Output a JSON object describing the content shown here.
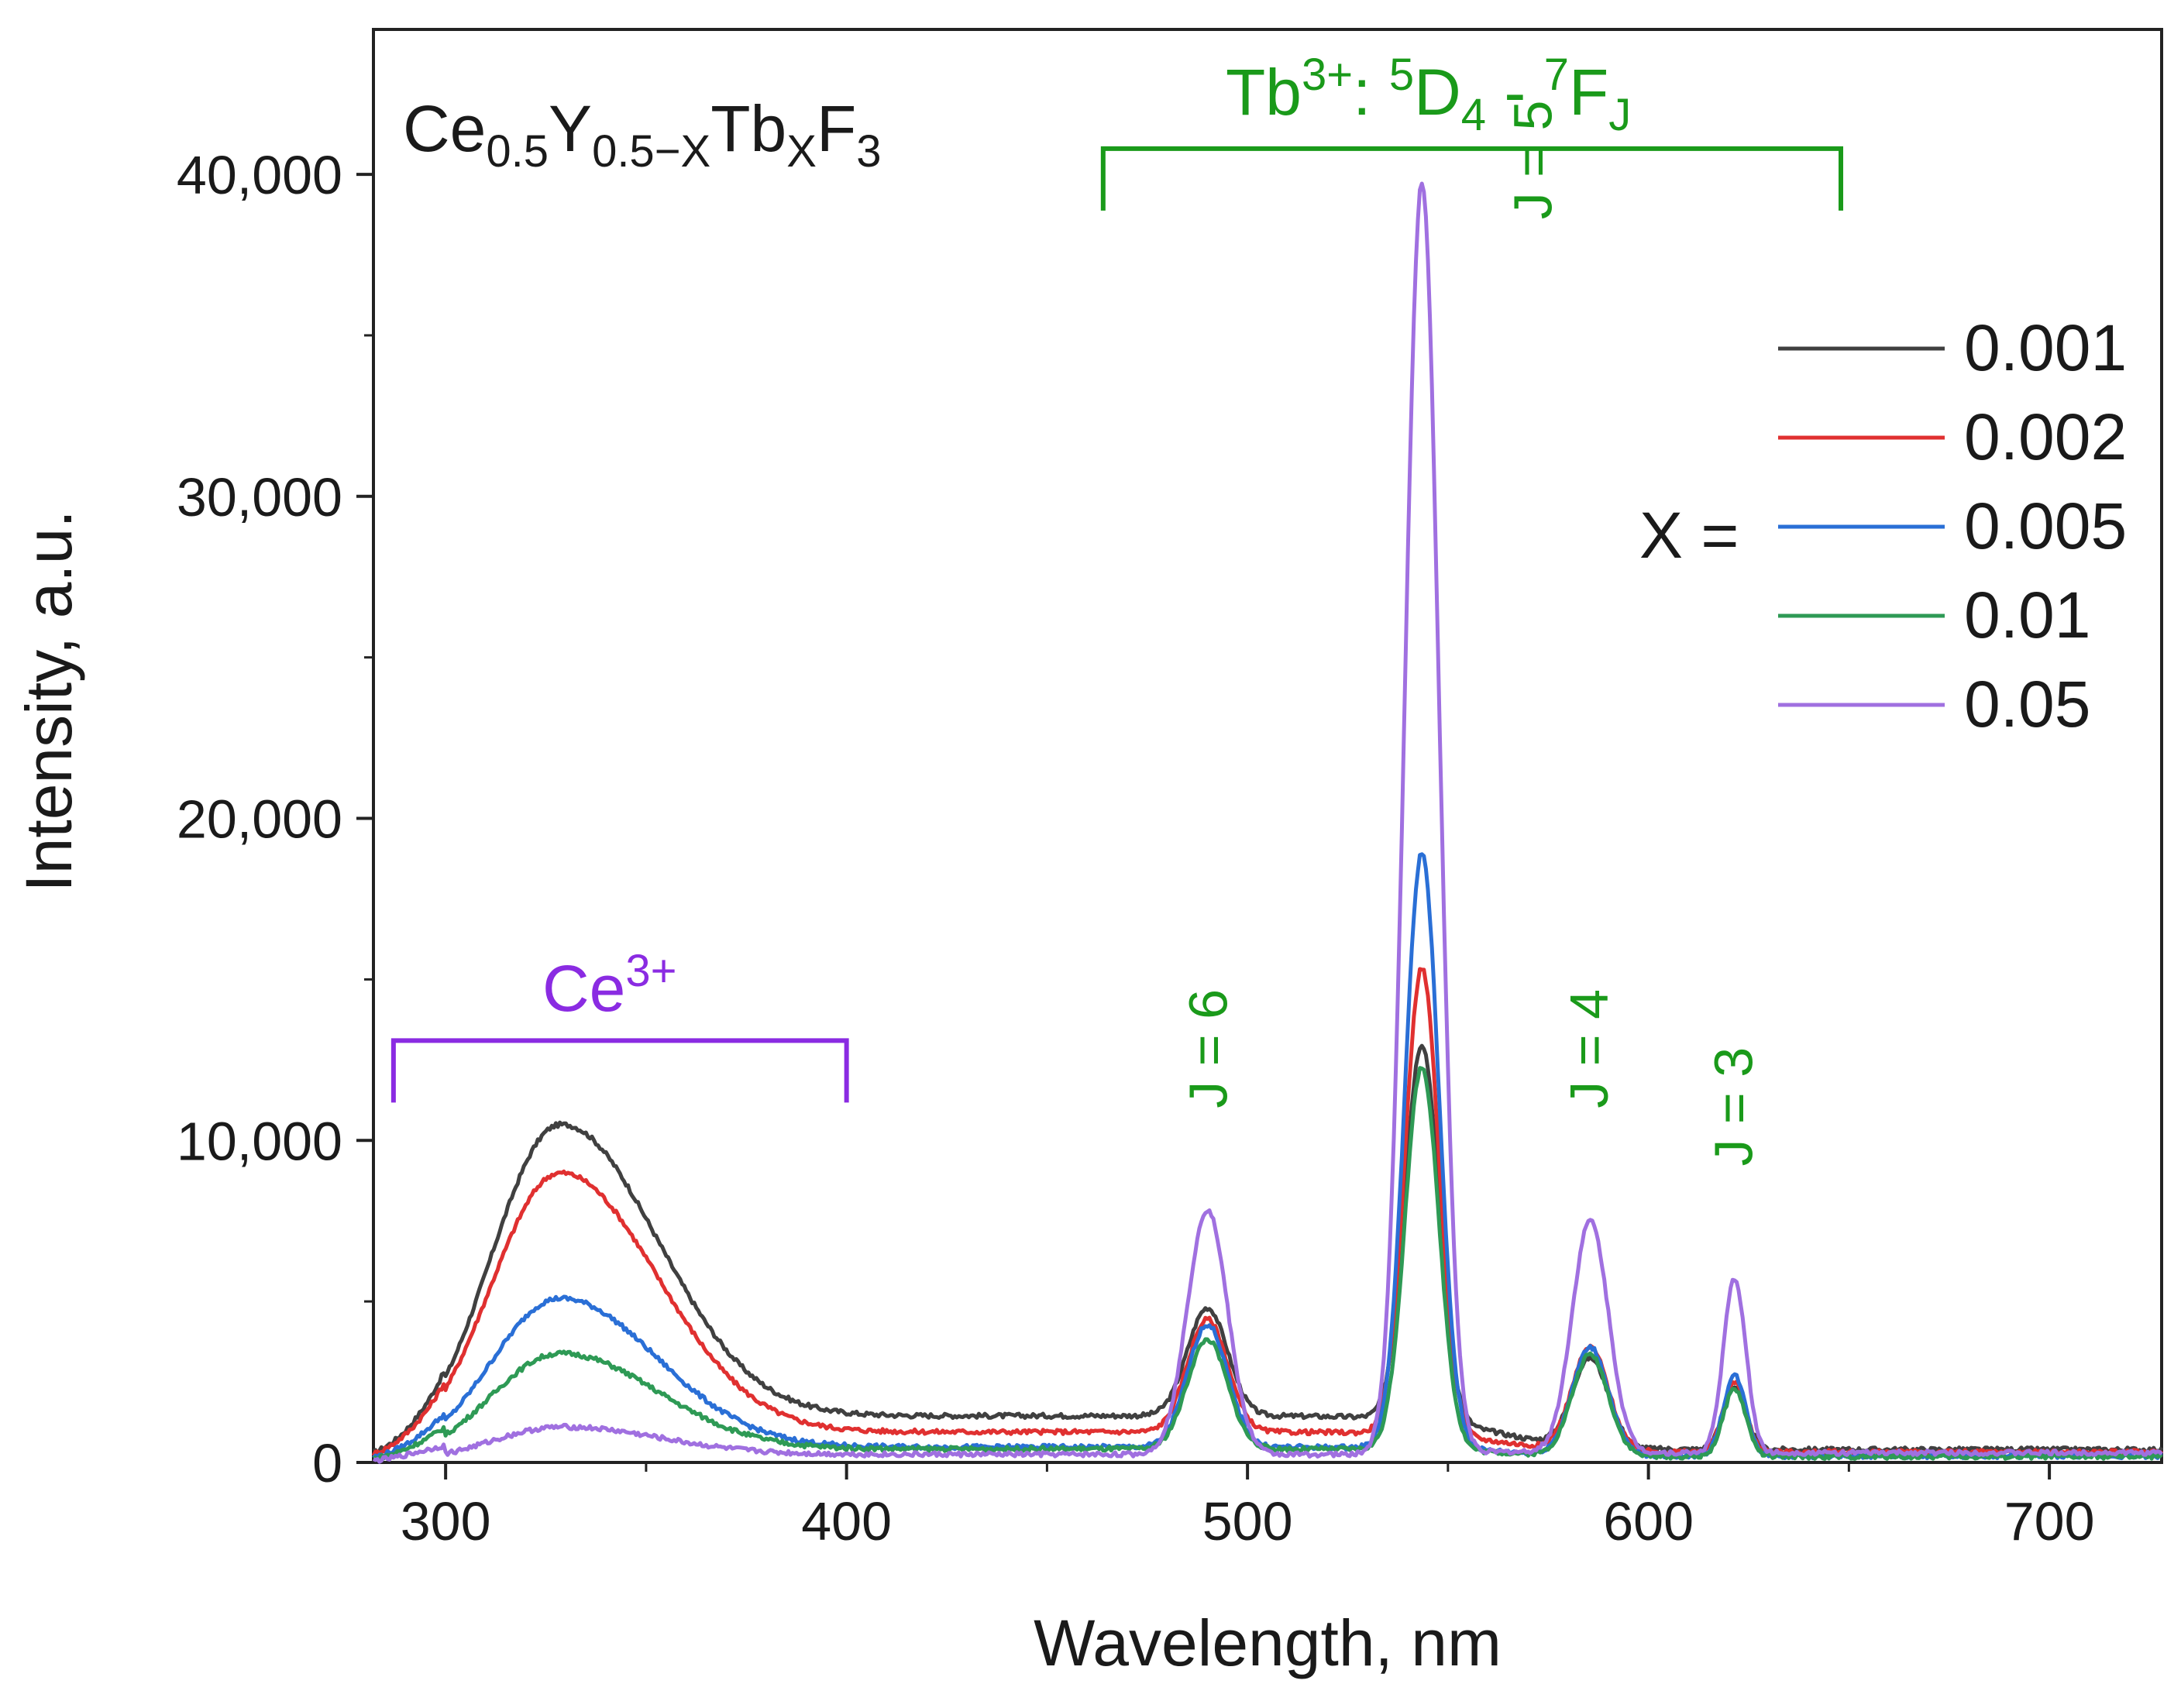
{
  "chart_data": {
    "type": "line",
    "xlabel": "Wavelength, nm",
    "ylabel": "Intensity, a.u.",
    "xlim": [
      282,
      728
    ],
    "ylim": [
      0,
      44500
    ],
    "x_ticks": [
      300,
      400,
      500,
      600,
      700
    ],
    "x_tick_labels": [
      "300",
      "400",
      "500",
      "600",
      "700"
    ],
    "y_ticks": [
      0,
      10000,
      20000,
      30000,
      40000
    ],
    "y_tick_labels": [
      "0",
      "10,000",
      "20,000",
      "30,000",
      "40,000"
    ],
    "compound": {
      "base": "Ce",
      "sub1": "0.5",
      "mid": "Y",
      "sub2": "0.5−X",
      "mid2": "Tb",
      "sub3": "X",
      "end": "F",
      "sub4": "3"
    },
    "tb_label": {
      "main": "Tb",
      "sup1": "3+",
      "colon": ": ",
      "sup2": "5",
      "d": "D",
      "sub1": "4",
      "dash": " - ",
      "sup3": "7",
      "f": "F",
      "sub2": "J"
    },
    "ce_label": {
      "main": "Ce",
      "sup": "3+"
    },
    "legend_prefix": "X =",
    "legend_position": "right",
    "annotations": [
      {
        "text": "J = 6",
        "x": 490,
        "y": 11000
      },
      {
        "text": "J = 5",
        "x": 571,
        "y": 38600
      },
      {
        "text": "J = 4",
        "x": 585,
        "y": 11000
      },
      {
        "text": "J = 3",
        "x": 621,
        "y": 9200
      }
    ],
    "brackets": [
      {
        "name": "ce3-bracket",
        "x_start": 287,
        "x_end": 400,
        "y": 13100,
        "color": "#8a2be2"
      },
      {
        "name": "tb3-bracket",
        "x_start": 464,
        "x_end": 648,
        "y": 40800,
        "color": "#1a9a1a"
      }
    ],
    "series": [
      {
        "name": "0.001",
        "color": "#404040",
        "ce_amp": 10200,
        "base": 1450,
        "peaks": [
          3350,
          11700,
          2750,
          1950
        ],
        "tail": 400
      },
      {
        "name": "0.002",
        "color": "#e03030",
        "ce_amp": 8800,
        "base": 950,
        "peaks": [
          3500,
          14500,
          3200,
          2200
        ],
        "tail": 320
      },
      {
        "name": "0.005",
        "color": "#2a6fd6",
        "ce_amp": 5000,
        "base": 480,
        "peaks": [
          3800,
          18500,
          3350,
          2500
        ],
        "tail": 200
      },
      {
        "name": "0.01",
        "color": "#2e9a55",
        "ce_amp": 3300,
        "base": 420,
        "peaks": [
          3400,
          11900,
          3150,
          2100
        ],
        "tail": 180
      },
      {
        "name": "0.05",
        "color": "#a070e0",
        "ce_amp": 1050,
        "base": 250,
        "peaks": [
          7600,
          39500,
          7200,
          5400
        ],
        "tail": 300
      }
    ]
  }
}
